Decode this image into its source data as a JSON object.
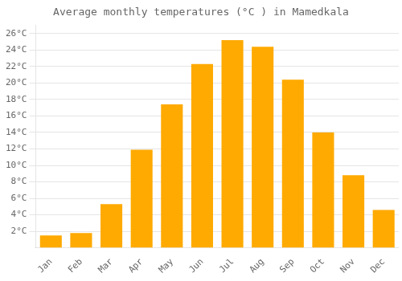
{
  "chart_data": {
    "type": "bar",
    "title": "Average monthly temperatures (°C ) in Mamedkala",
    "categories": [
      "Jan",
      "Feb",
      "Mar",
      "Apr",
      "May",
      "Jun",
      "Jul",
      "Aug",
      "Sep",
      "Oct",
      "Nov",
      "Dec"
    ],
    "values": [
      1.5,
      1.8,
      5.3,
      11.9,
      17.4,
      22.3,
      25.2,
      24.4,
      20.4,
      14.0,
      8.8,
      4.6
    ],
    "color": "#FFAA00",
    "ylim": [
      0,
      27
    ],
    "yticks": [
      {
        "value": 2,
        "label": "2°C"
      },
      {
        "value": 4,
        "label": "4°C"
      },
      {
        "value": 6,
        "label": "6°C"
      },
      {
        "value": 8,
        "label": "8°C"
      },
      {
        "value": 10,
        "label": "10°C"
      },
      {
        "value": 12,
        "label": "12°C"
      },
      {
        "value": 14,
        "label": "14°C"
      },
      {
        "value": 16,
        "label": "16°C"
      },
      {
        "value": 18,
        "label": "18°C"
      },
      {
        "value": 20,
        "label": "20°C"
      },
      {
        "value": 22,
        "label": "22°C"
      },
      {
        "value": 24,
        "label": "24°C"
      },
      {
        "value": 26,
        "label": "26°C"
      }
    ],
    "grid": true
  }
}
